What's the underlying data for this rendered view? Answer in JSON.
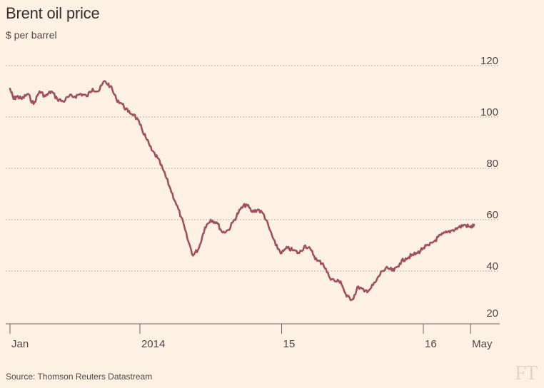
{
  "title": "Brent oil price",
  "subtitle": "$ per barrel",
  "source": "Source: Thomson Reuters Datastream",
  "logo": "FT",
  "colors": {
    "background": "#fdf1e3",
    "line": "#a0505f",
    "grid": "#a39a91",
    "text": "#4d4845"
  },
  "chart_data": {
    "type": "line",
    "title": "Brent oil price",
    "ylabel": "$ per barrel",
    "xlabel": "",
    "ylim": [
      20,
      120
    ],
    "yticks": [
      20,
      40,
      60,
      80,
      100,
      120
    ],
    "xlim": [
      0,
      40.5
    ],
    "xtick_positions": [
      0,
      11,
      23,
      35,
      39
    ],
    "xtick_labels": [
      "Jan",
      "2014",
      "15",
      "16",
      "May"
    ],
    "grid": "horizontal dotted",
    "series": [
      {
        "values_x": [
          0,
          0.3,
          0.6,
          1,
          1.5,
          2,
          2.5,
          3,
          3.5,
          4,
          4.5,
          5,
          5.5,
          6,
          6.5,
          7,
          7.5,
          8,
          8.5,
          9,
          9.5,
          10,
          10.5,
          11,
          11.5,
          12,
          12.5,
          13,
          13.5,
          14,
          14.5,
          15,
          15.5,
          16,
          16.5,
          17,
          17.5,
          18,
          18.5,
          19,
          19.5,
          20,
          20.5,
          21,
          21.5,
          22,
          22.5,
          23,
          23.5,
          24,
          24.5,
          25,
          25.5,
          26,
          26.5,
          27,
          27.5,
          28,
          28.5,
          29,
          29.5,
          30,
          30.5,
          31,
          31.5,
          32,
          32.5,
          33,
          33.5,
          34,
          34.5,
          35,
          35.5,
          36,
          36.5,
          37,
          37.5,
          38,
          38.5,
          39,
          39.3
        ],
        "values_y": [
          111,
          107,
          108,
          107,
          109,
          105,
          110,
          108,
          110,
          107,
          106,
          108,
          108,
          109,
          108,
          111,
          110,
          114,
          112,
          107,
          105,
          102,
          101,
          97,
          92,
          87,
          84,
          79,
          73,
          67,
          61,
          53,
          46,
          49,
          57,
          60,
          59,
          55,
          56,
          60,
          64,
          66,
          63,
          64,
          62,
          56,
          50,
          47,
          49,
          48,
          47,
          50,
          48,
          44,
          43,
          38,
          36,
          36,
          30,
          29,
          34,
          32,
          33,
          36,
          40,
          41,
          40,
          43,
          45,
          46,
          47,
          49,
          50,
          52,
          54,
          55,
          56,
          57,
          58,
          57,
          58
        ],
        "values": [
          111,
          107,
          108,
          107,
          109,
          105,
          110,
          108,
          110,
          107,
          106,
          108,
          108,
          109,
          108,
          111,
          110,
          114,
          112,
          107,
          105,
          102,
          101,
          97,
          92,
          87,
          84,
          79,
          73,
          67,
          61,
          53,
          46,
          49,
          57,
          60,
          59,
          55,
          56,
          60,
          64,
          66,
          63,
          64,
          62,
          56,
          50,
          47,
          49,
          48,
          47,
          50,
          48,
          44,
          43,
          38,
          36,
          36,
          30,
          29,
          34,
          32,
          33,
          36,
          40,
          41,
          40,
          43,
          45,
          46,
          47,
          49,
          50,
          52,
          54,
          55,
          56,
          57,
          58,
          57,
          58
        ]
      }
    ]
  }
}
